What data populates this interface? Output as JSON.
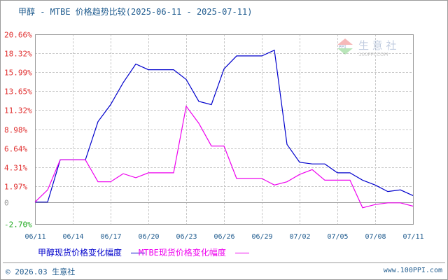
{
  "title": "甲醇 - MTBE 价格趋势比较(2025-06-11 - 2025-07-11)",
  "watermark": {
    "brand": "生 意 社",
    "url": "100PPI.COM",
    "logo": "PPI"
  },
  "legend": [
    {
      "label": "甲醇现货价格变化幅度",
      "color": "#0000cc"
    },
    {
      "label": "MTBE现货价格变化幅度",
      "color": "#ee00ee"
    }
  ],
  "footer": {
    "copyright": "© 2026.03 生意社",
    "site": "www.100PPI.com"
  },
  "chart_data": {
    "type": "line",
    "title": "甲醇 - MTBE 价格趋势比较(2025-06-11 - 2025-07-11)",
    "xlabel": "",
    "ylabel": "",
    "ylim": [
      -2.7,
      20.66
    ],
    "y_ticks": [
      "20.66%",
      "18.32%",
      "15.99%",
      "13.65%",
      "11.32%",
      "8.98%",
      "6.64%",
      "4.31%",
      "1.97%",
      "0",
      "-2.70%"
    ],
    "x_ticks": [
      "06/11",
      "06/14",
      "06/17",
      "06/20",
      "06/23",
      "06/26",
      "06/29",
      "07/02",
      "07/05",
      "07/08",
      "07/11"
    ],
    "grid": true,
    "legend_position": "bottom",
    "x": [
      "06/11",
      "06/12",
      "06/13",
      "06/14",
      "06/15",
      "06/16",
      "06/17",
      "06/18",
      "06/19",
      "06/20",
      "06/21",
      "06/22",
      "06/23",
      "06/24",
      "06/25",
      "06/26",
      "06/27",
      "06/28",
      "06/29",
      "06/30",
      "07/01",
      "07/02",
      "07/03",
      "07/04",
      "07/05",
      "07/06",
      "07/07",
      "07/08",
      "07/09",
      "07/10",
      "07/11"
    ],
    "series": [
      {
        "name": "甲醇现货价格变化幅度",
        "color": "#0000cc",
        "values": [
          0,
          0,
          5.2,
          5.2,
          5.2,
          9.9,
          12.0,
          14.7,
          17.0,
          16.3,
          16.3,
          16.3,
          15.1,
          12.4,
          12.0,
          16.4,
          18.0,
          18.0,
          18.0,
          18.7,
          7.1,
          4.9,
          4.7,
          4.7,
          3.6,
          3.6,
          2.7,
          2.1,
          1.3,
          1.5,
          0.8
        ]
      },
      {
        "name": "MTBE现货价格变化幅度",
        "color": "#ee00ee",
        "values": [
          0,
          1.5,
          5.2,
          5.2,
          5.2,
          2.5,
          2.5,
          3.5,
          3.0,
          3.6,
          3.6,
          3.6,
          11.8,
          9.7,
          6.9,
          6.9,
          2.9,
          2.9,
          2.9,
          2.1,
          2.5,
          3.4,
          4.0,
          2.7,
          2.7,
          2.7,
          -0.7,
          -0.3,
          -0.1,
          -0.1,
          -0.5
        ]
      }
    ]
  }
}
